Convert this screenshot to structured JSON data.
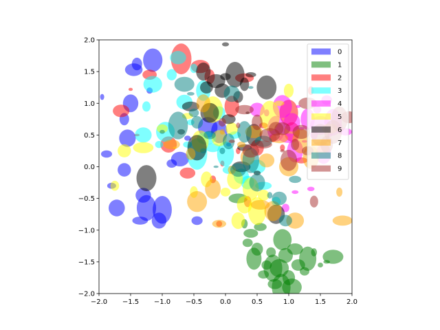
{
  "chart_data": {
    "type": "scatter",
    "title": "",
    "xlabel": "",
    "ylabel": "",
    "xlim": [
      -2,
      2
    ],
    "ylim": [
      -2,
      2
    ],
    "x_ticks": [
      "−2.0",
      "−1.5",
      "−1.0",
      "−0.5",
      "0.0",
      "0.5",
      "1.0",
      "1.5",
      "2.0"
    ],
    "y_ticks": [
      "−2.0",
      "−1.5",
      "−1.0",
      "−0.5",
      "0.0",
      "0.5",
      "1.0",
      "1.5",
      "2.0"
    ],
    "grid": false,
    "legend_position": "upper-right",
    "marker": "ellipse",
    "opacity": 0.5,
    "series": [
      {
        "name": "0",
        "color": "#0000ff",
        "points": [
          [
            -1.95,
            1.1
          ],
          [
            -1.8,
            -0.3
          ],
          [
            -1.72,
            -0.65
          ],
          [
            -1.6,
            0.75
          ],
          [
            -1.55,
            0.45
          ],
          [
            -1.5,
            1.0
          ],
          [
            -1.45,
            1.53
          ],
          [
            -1.4,
            1.62
          ],
          [
            -1.35,
            -0.85
          ],
          [
            -1.3,
            -0.45
          ],
          [
            -1.25,
            -0.65
          ],
          [
            -1.2,
            1.2
          ],
          [
            -1.15,
            1.68
          ],
          [
            -1.05,
            -0.85
          ],
          [
            -1.0,
            -0.68
          ],
          [
            -0.85,
            0.05
          ],
          [
            -0.72,
            0.12
          ],
          [
            -0.6,
            0.45
          ],
          [
            -0.45,
            -0.85
          ],
          [
            -0.28,
            0.62
          ],
          [
            -0.1,
            0.55
          ],
          [
            0.05,
            0.35
          ],
          [
            -1.6,
            -0.05
          ],
          [
            -1.88,
            0.2
          ]
        ]
      },
      {
        "name": "1",
        "color": "#008000",
        "points": [
          [
            0.2,
            -0.5
          ],
          [
            0.35,
            -1.2
          ],
          [
            0.45,
            -1.45
          ],
          [
            0.55,
            -0.95
          ],
          [
            0.6,
            -1.7
          ],
          [
            0.65,
            -1.55
          ],
          [
            0.72,
            -1.35
          ],
          [
            0.78,
            -1.85
          ],
          [
            0.85,
            -1.6
          ],
          [
            0.9,
            -1.15
          ],
          [
            0.95,
            -1.4
          ],
          [
            1.0,
            -1.75
          ],
          [
            1.05,
            -1.9
          ],
          [
            1.1,
            -1.3
          ],
          [
            1.15,
            -1.55
          ],
          [
            1.25,
            -1.65
          ],
          [
            1.3,
            -1.45
          ],
          [
            1.4,
            -1.35
          ],
          [
            1.5,
            -1.55
          ],
          [
            1.6,
            -1.5
          ],
          [
            1.7,
            -1.42
          ],
          [
            0.4,
            -1.05
          ],
          [
            0.5,
            -1.3
          ],
          [
            0.3,
            -0.9
          ],
          [
            0.88,
            -1.9
          ],
          [
            0.75,
            -1.6
          ]
        ]
      },
      {
        "name": "2",
        "color": "#ff0000",
        "points": [
          [
            -1.65,
            0.88
          ],
          [
            -1.5,
            1.22
          ],
          [
            -1.4,
            0.5
          ],
          [
            -1.2,
            1.45
          ],
          [
            -0.9,
            0.35
          ],
          [
            -0.6,
            -0.1
          ],
          [
            -0.4,
            1.58
          ],
          [
            -0.25,
            1.42
          ],
          [
            -0.1,
            -0.9
          ],
          [
            -0.05,
            0.05
          ],
          [
            0.1,
            0.95
          ],
          [
            0.2,
            0.25
          ],
          [
            0.35,
            -0.55
          ],
          [
            0.5,
            0.3
          ],
          [
            0.6,
            0.65
          ],
          [
            0.75,
            0.45
          ],
          [
            0.9,
            0.3
          ],
          [
            1.05,
            0.55
          ],
          [
            1.2,
            0.1
          ],
          [
            1.35,
            1.2
          ],
          [
            -0.2,
            -0.2
          ],
          [
            0.3,
            1.4
          ],
          [
            1.0,
            0.85
          ],
          [
            -0.7,
            1.7
          ]
        ]
      },
      {
        "name": "3",
        "color": "#00ffff",
        "points": [
          [
            -1.3,
            0.5
          ],
          [
            -1.25,
            0.95
          ],
          [
            -1.15,
            1.3
          ],
          [
            -1.05,
            0.35
          ],
          [
            -0.95,
            0.55
          ],
          [
            -0.85,
            1.45
          ],
          [
            -0.75,
            1.72
          ],
          [
            -0.65,
            1.02
          ],
          [
            -0.55,
            0.7
          ],
          [
            -0.45,
            0.2
          ],
          [
            -0.35,
            1.2
          ],
          [
            -0.3,
            0.45
          ],
          [
            -0.2,
            0.3
          ],
          [
            -0.1,
            0.85
          ],
          [
            0.0,
            0.2
          ],
          [
            0.05,
            -0.05
          ],
          [
            0.15,
            0.5
          ],
          [
            0.25,
            -0.15
          ],
          [
            0.35,
            -0.25
          ],
          [
            0.5,
            0.0
          ],
          [
            0.6,
            -0.3
          ],
          [
            0.8,
            -0.55
          ],
          [
            -0.5,
            1.55
          ],
          [
            -0.6,
            0.35
          ]
        ]
      },
      {
        "name": "4",
        "color": "#ff00ff",
        "points": [
          [
            0.5,
            0.9
          ],
          [
            0.65,
            0.85
          ],
          [
            0.8,
            0.6
          ],
          [
            0.9,
            0.95
          ],
          [
            1.0,
            0.45
          ],
          [
            1.05,
            0.7
          ],
          [
            1.1,
            0.25
          ],
          [
            1.15,
            0.95
          ],
          [
            1.2,
            0.6
          ],
          [
            1.25,
            0.4
          ],
          [
            1.3,
            0.75
          ],
          [
            1.35,
            -0.35
          ],
          [
            1.4,
            0.5
          ],
          [
            1.45,
            0.9
          ],
          [
            1.5,
            0.65
          ],
          [
            1.55,
            0.2
          ],
          [
            1.6,
            1.05
          ],
          [
            1.65,
            0.5
          ],
          [
            1.7,
            0.7
          ],
          [
            1.8,
            0.6
          ],
          [
            1.9,
            0.55
          ],
          [
            0.95,
            -0.65
          ],
          [
            1.1,
            -0.4
          ]
        ]
      },
      {
        "name": "5",
        "color": "#ffff00",
        "points": [
          [
            -1.75,
            -0.3
          ],
          [
            -1.6,
            0.25
          ],
          [
            -1.3,
            0.3
          ],
          [
            -1.0,
            0.6
          ],
          [
            -0.8,
            0.3
          ],
          [
            -0.6,
            0.8
          ],
          [
            -0.5,
            -0.4
          ],
          [
            -0.4,
            0.4
          ],
          [
            -0.3,
            -0.2
          ],
          [
            -0.2,
            0.9
          ],
          [
            -0.1,
            0.45
          ],
          [
            0.0,
            -0.4
          ],
          [
            0.1,
            0.6
          ],
          [
            0.2,
            -0.85
          ],
          [
            0.3,
            -0.6
          ],
          [
            0.4,
            -0.35
          ],
          [
            0.5,
            -0.7
          ],
          [
            0.6,
            -0.45
          ],
          [
            0.7,
            0.8
          ],
          [
            0.85,
            1.0
          ],
          [
            1.0,
            1.2
          ],
          [
            0.15,
            -0.2
          ]
        ]
      },
      {
        "name": "6",
        "color": "#000000",
        "points": [
          [
            -1.25,
            -0.18
          ],
          [
            -0.7,
            0.55
          ],
          [
            -0.55,
            0.95
          ],
          [
            -0.45,
            0.3
          ],
          [
            -0.35,
            1.5
          ],
          [
            -0.3,
            1.25
          ],
          [
            -0.25,
            0.85
          ],
          [
            -0.15,
            1.35
          ],
          [
            -0.05,
            1.2
          ],
          [
            0.0,
            1.42
          ],
          [
            0.05,
            0.75
          ],
          [
            0.15,
            1.45
          ],
          [
            0.2,
            1.1
          ],
          [
            0.25,
            0.0
          ],
          [
            0.3,
            1.3
          ],
          [
            0.35,
            0.85
          ],
          [
            0.4,
            1.45
          ],
          [
            0.45,
            0.5
          ],
          [
            0.5,
            -0.1
          ],
          [
            0.65,
            1.25
          ],
          [
            0.0,
            1.93
          ],
          [
            0.3,
            0.3
          ],
          [
            0.8,
            -0.75
          ]
        ]
      },
      {
        "name": "7",
        "color": "#ffa500",
        "points": [
          [
            -0.85,
            0.35
          ],
          [
            -0.55,
            0.2
          ],
          [
            -0.45,
            -0.55
          ],
          [
            -0.35,
            1.0
          ],
          [
            -0.2,
            -0.35
          ],
          [
            -0.1,
            -0.9
          ],
          [
            -0.05,
            0.55
          ],
          [
            0.1,
            -0.05
          ],
          [
            0.25,
            0.35
          ],
          [
            0.35,
            0.15
          ],
          [
            0.45,
            0.55
          ],
          [
            0.55,
            -0.6
          ],
          [
            0.65,
            0.1
          ],
          [
            0.75,
            -0.7
          ],
          [
            0.85,
            0.45
          ],
          [
            1.0,
            0.0
          ],
          [
            1.1,
            -0.85
          ],
          [
            1.2,
            0.4
          ],
          [
            1.35,
            0.15
          ],
          [
            1.5,
            0.3
          ],
          [
            1.65,
            0.6
          ],
          [
            1.8,
            -0.4
          ],
          [
            1.85,
            -0.85
          ]
        ]
      },
      {
        "name": "8",
        "color": "#008080",
        "points": [
          [
            -1.0,
            0.55
          ],
          [
            -0.75,
            0.65
          ],
          [
            -0.65,
            1.3
          ],
          [
            -0.55,
            1.15
          ],
          [
            -0.45,
            0.7
          ],
          [
            -0.35,
            0.25
          ],
          [
            -0.25,
            0.5
          ],
          [
            -0.15,
            0.0
          ],
          [
            -0.05,
            0.25
          ],
          [
            0.05,
            0.4
          ],
          [
            0.1,
            1.15
          ],
          [
            0.2,
            -0.05
          ],
          [
            0.3,
            0.55
          ],
          [
            0.4,
            0.1
          ],
          [
            0.5,
            -0.25
          ],
          [
            0.6,
            0.4
          ],
          [
            0.7,
            -0.45
          ],
          [
            0.85,
            -0.5
          ],
          [
            0.95,
            -0.85
          ],
          [
            1.1,
            -0.2
          ],
          [
            0.4,
            1.25
          ],
          [
            -0.5,
            0.85
          ]
        ]
      },
      {
        "name": "9",
        "color": "#a52a2a",
        "points": [
          [
            -0.05,
            0.7
          ],
          [
            0.1,
            0.4
          ],
          [
            0.2,
            0.65
          ],
          [
            0.3,
            0.9
          ],
          [
            0.4,
            0.25
          ],
          [
            0.5,
            0.7
          ],
          [
            0.6,
            0.35
          ],
          [
            0.7,
            0.5
          ],
          [
            0.8,
            0.6
          ],
          [
            0.9,
            0.25
          ],
          [
            1.0,
            0.1
          ],
          [
            1.1,
            0.35
          ],
          [
            1.2,
            0.55
          ],
          [
            1.3,
            0.25
          ],
          [
            1.4,
            -0.55
          ],
          [
            1.5,
            0.5
          ],
          [
            1.6,
            0.35
          ],
          [
            1.7,
            0.55
          ],
          [
            1.8,
            0.75
          ],
          [
            1.95,
            0.78
          ],
          [
            0.9,
            0.6
          ],
          [
            1.3,
            1.0
          ]
        ]
      }
    ]
  }
}
